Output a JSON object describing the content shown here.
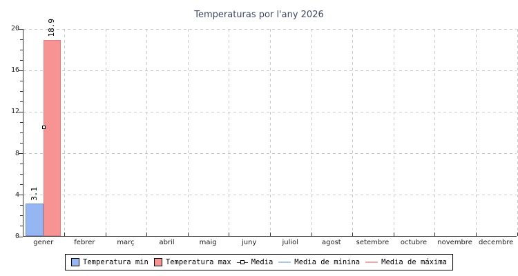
{
  "chart_data": {
    "type": "bar",
    "title": "Temperaturas por l'any 2026",
    "categories": [
      "gener",
      "febrer",
      "març",
      "abril",
      "maig",
      "juny",
      "juliol",
      "agost",
      "setembre",
      "octubre",
      "novembre",
      "decembre"
    ],
    "series": [
      {
        "name": "Temperatura min",
        "type": "bar",
        "color": "#95b6f3",
        "border_color": "#6f8fc9",
        "values": [
          3.1,
          null,
          null,
          null,
          null,
          null,
          null,
          null,
          null,
          null,
          null,
          null
        ]
      },
      {
        "name": "Temperatura max",
        "type": "bar",
        "color": "#f79393",
        "border_color": "#d97f7f",
        "values": [
          18.9,
          null,
          null,
          null,
          null,
          null,
          null,
          null,
          null,
          null,
          null,
          null
        ]
      },
      {
        "name": "Media",
        "type": "point",
        "color": "#ffffff",
        "border_color": "#000000",
        "values": [
          10.5,
          null,
          null,
          null,
          null,
          null,
          null,
          null,
          null,
          null,
          null,
          null
        ]
      },
      {
        "name": "Media de mínina",
        "type": "line",
        "color": "#a9c7e9",
        "values": [
          null,
          null,
          null,
          null,
          null,
          null,
          null,
          null,
          null,
          null,
          null,
          null
        ]
      },
      {
        "name": "Media de máxima",
        "type": "line",
        "color": "#f7a6a6",
        "values": [
          null,
          null,
          null,
          null,
          null,
          null,
          null,
          null,
          null,
          null,
          null,
          null
        ]
      }
    ],
    "ylim": [
      0,
      20
    ],
    "yticks": [
      0,
      4,
      8,
      12,
      16,
      20
    ],
    "minor_tick_step": 1,
    "grid": "dashed",
    "legend_position": "bottom",
    "value_label_decimals": 1,
    "xlabel": "",
    "ylabel": ""
  },
  "colors": {
    "title": "#3d4a63",
    "grid": "#c9c9c9",
    "axis": "#2f2f2f",
    "text": "#1a1a1a",
    "background": "#ffffff"
  }
}
